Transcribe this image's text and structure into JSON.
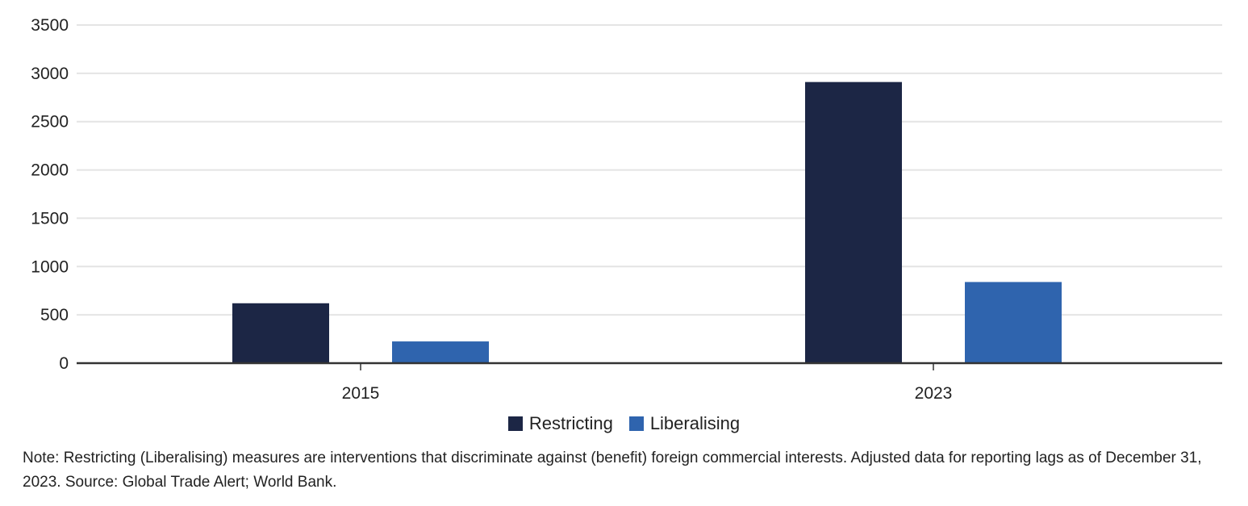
{
  "chart_data": {
    "type": "bar",
    "categories": [
      "2015",
      "2023"
    ],
    "series": [
      {
        "name": "Restricting",
        "color": "#1c2645",
        "values": [
          620,
          2910
        ]
      },
      {
        "name": "Liberalising",
        "color": "#2f64ae",
        "values": [
          225,
          840
        ]
      }
    ],
    "yticks": [
      "0",
      "500",
      "1000",
      "1500",
      "2000",
      "2500",
      "3000",
      "3500"
    ],
    "ylim": [
      0,
      3500
    ],
    "grid": true,
    "legend_position": "bottom",
    "title": "",
    "xlabel": "",
    "ylabel": ""
  },
  "legend": {
    "restricting": "Restricting",
    "liberalising": "Liberalising"
  },
  "note": "Note: Restricting (Liberalising) measures are interventions that discriminate against (benefit) foreign commercial interests. Adjusted data for reporting lags as of December 31, 2023. Source: Global Trade Alert; World Bank."
}
